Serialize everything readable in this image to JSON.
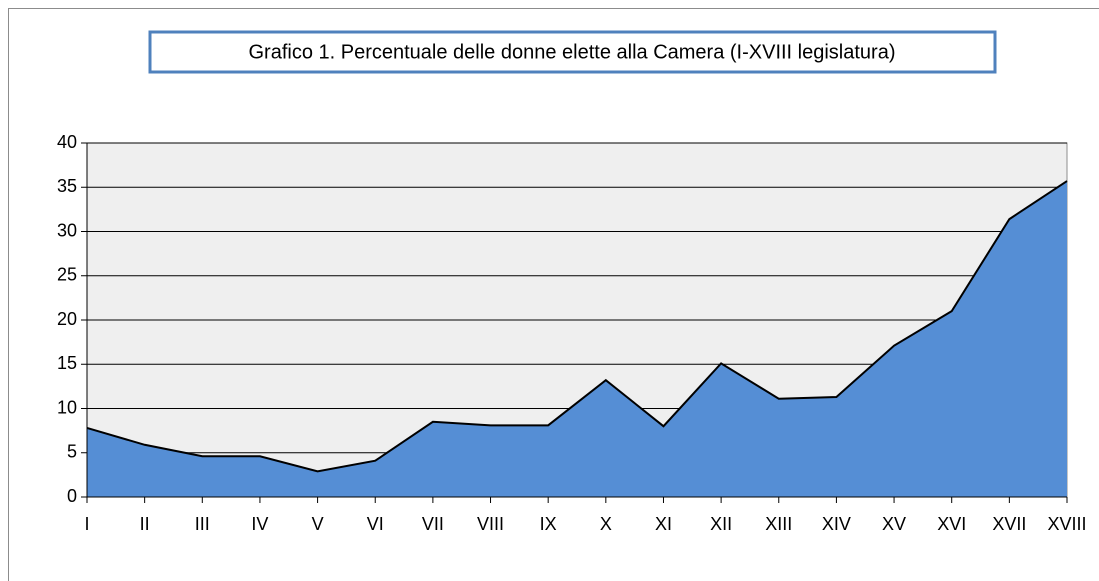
{
  "chart_data": {
    "type": "area",
    "title": "Grafico 1. Percentuale delle donne elette alla Camera (I-XVIII legislatura)",
    "categories": [
      "I",
      "II",
      "III",
      "IV",
      "V",
      "VI",
      "VII",
      "VIII",
      "IX",
      "X",
      "XI",
      "XII",
      "XIII",
      "XIV",
      "XV",
      "XVI",
      "XVII",
      "XVIII"
    ],
    "values": [
      7.8,
      5.9,
      4.6,
      4.6,
      2.9,
      4.1,
      8.5,
      8.1,
      8.1,
      13.2,
      8.0,
      15.1,
      11.1,
      11.3,
      17.1,
      21.0,
      31.4,
      35.7
    ],
    "color": "#558ed5",
    "ylim": [
      0,
      40
    ],
    "yticks": [
      0,
      5,
      10,
      15,
      20,
      25,
      30,
      35,
      40
    ],
    "grid": true
  }
}
